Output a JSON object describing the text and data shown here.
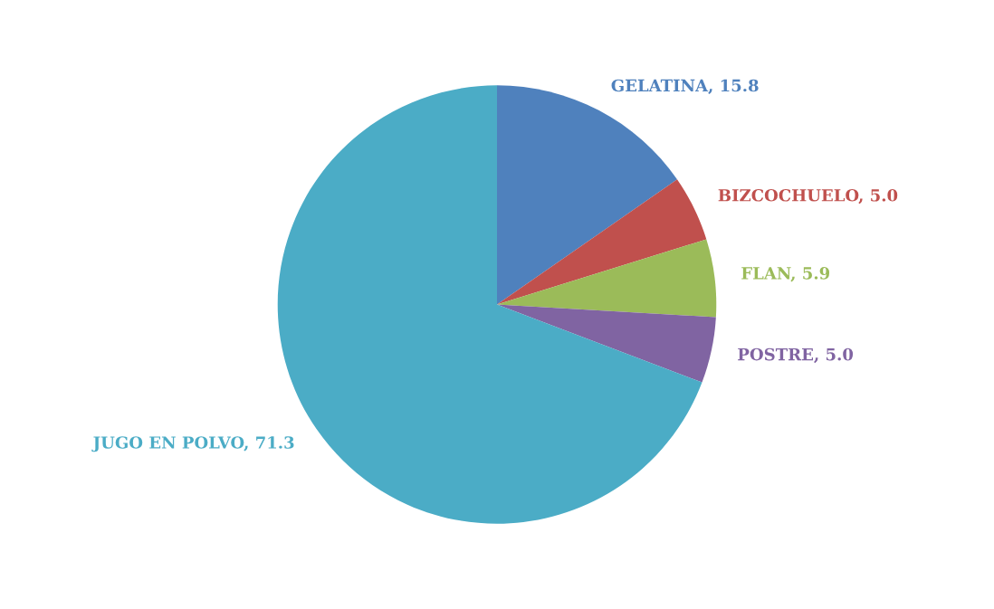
{
  "chart_data": {
    "type": "pie",
    "categories": [
      "GELATINA",
      "BIZCOCHUELO",
      "FLAN",
      "POSTRE",
      "JUGO EN POLVO"
    ],
    "values": [
      15.8,
      5.0,
      5.9,
      5.0,
      71.3
    ],
    "value_labels": [
      "15.8",
      "5.0",
      "5.9",
      "5.0",
      "71.3"
    ],
    "colors": [
      "#4f81bd",
      "#c0504d",
      "#9bbb59",
      "#8064a2",
      "#4bacc6"
    ],
    "legend": false
  }
}
